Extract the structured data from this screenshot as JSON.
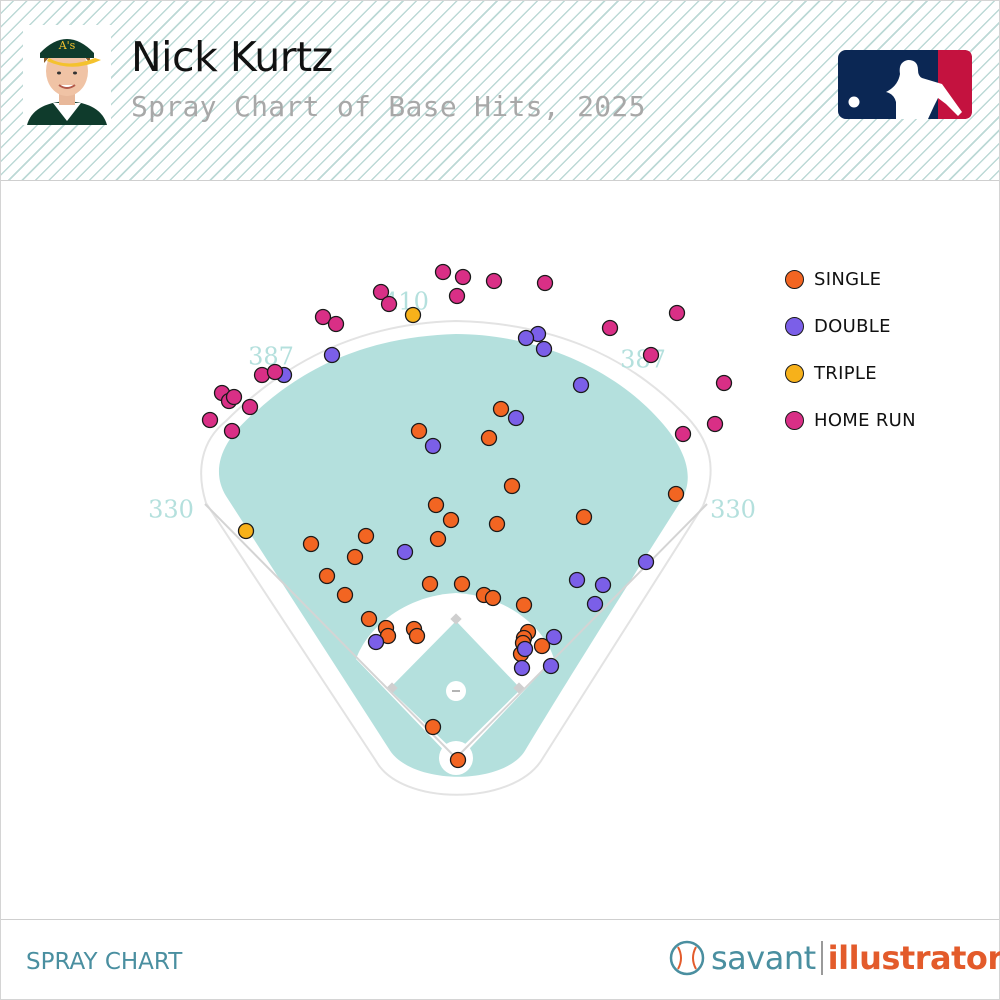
{
  "header": {
    "player_name": "Nick Kurtz",
    "subtitle": "Spray Chart of Base Hits, 2025"
  },
  "colors": {
    "single": "#f26522",
    "double": "#7b5fe8",
    "triple": "#f7b11a",
    "home_run": "#d92f86",
    "field": "#b4e0dd",
    "distance_label": "#b4e0dd",
    "mlb_blue": "#0b2754",
    "mlb_red": "#c4123f",
    "brand_teal": "#4a8fa0",
    "brand_orange": "#e35b2b"
  },
  "icons": {
    "logo": "mlb-logo",
    "avatar": "player-headshot",
    "brand": "baseball-icon"
  },
  "chart_data": {
    "type": "scatter",
    "title": "Spray Chart of Base Hits, 2025",
    "grid": false,
    "legend_placement": "right",
    "fence_distances": [
      {
        "label": "330",
        "side": "left-foul-line"
      },
      {
        "label": "387",
        "side": "left-center"
      },
      {
        "label": "410",
        "side": "center"
      },
      {
        "label": "387",
        "side": "right-center"
      },
      {
        "label": "330",
        "side": "right-foul-line"
      }
    ],
    "legend": [
      {
        "key": "single",
        "label": "SINGLE"
      },
      {
        "key": "double",
        "label": "DOUBLE"
      },
      {
        "key": "triple",
        "label": "TRIPLE"
      },
      {
        "key": "home_run",
        "label": "HOME RUN"
      }
    ],
    "series": [
      {
        "name": "SINGLE",
        "key": "single",
        "points": [
          [
            418,
            430
          ],
          [
            488,
            437
          ],
          [
            500,
            408
          ],
          [
            511,
            485
          ],
          [
            435,
            504
          ],
          [
            450,
            519
          ],
          [
            496,
            523
          ],
          [
            437,
            538
          ],
          [
            365,
            535
          ],
          [
            310,
            543
          ],
          [
            354,
            556
          ],
          [
            326,
            575
          ],
          [
            344,
            594
          ],
          [
            429,
            583
          ],
          [
            461,
            583
          ],
          [
            483,
            594
          ],
          [
            492,
            597
          ],
          [
            523,
            604
          ],
          [
            675,
            493
          ],
          [
            583,
            516
          ],
          [
            368,
            618
          ],
          [
            385,
            627
          ],
          [
            387,
            635
          ],
          [
            413,
            628
          ],
          [
            416,
            635
          ],
          [
            527,
            631
          ],
          [
            523,
            637
          ],
          [
            522,
            642
          ],
          [
            541,
            645
          ],
          [
            520,
            653
          ],
          [
            432,
            726
          ],
          [
            457,
            759
          ]
        ]
      },
      {
        "name": "DOUBLE",
        "key": "double",
        "points": [
          [
            331,
            354
          ],
          [
            283,
            374
          ],
          [
            537,
            333
          ],
          [
            525,
            337
          ],
          [
            543,
            348
          ],
          [
            580,
            384
          ],
          [
            515,
            417
          ],
          [
            432,
            445
          ],
          [
            404,
            551
          ],
          [
            645,
            561
          ],
          [
            576,
            579
          ],
          [
            602,
            584
          ],
          [
            594,
            603
          ],
          [
            375,
            641
          ],
          [
            553,
            636
          ],
          [
            524,
            648
          ],
          [
            521,
            667
          ],
          [
            550,
            665
          ]
        ]
      },
      {
        "name": "TRIPLE",
        "key": "triple",
        "points": [
          [
            412,
            314
          ],
          [
            245,
            530
          ]
        ]
      },
      {
        "name": "HOME RUN",
        "key": "home_run",
        "points": [
          [
            442,
            271
          ],
          [
            462,
            276
          ],
          [
            493,
            280
          ],
          [
            544,
            282
          ],
          [
            380,
            291
          ],
          [
            456,
            295
          ],
          [
            388,
            303
          ],
          [
            322,
            316
          ],
          [
            335,
            323
          ],
          [
            609,
            327
          ],
          [
            676,
            312
          ],
          [
            650,
            354
          ],
          [
            723,
            382
          ],
          [
            261,
            374
          ],
          [
            274,
            371
          ],
          [
            221,
            392
          ],
          [
            228,
            400
          ],
          [
            233,
            396
          ],
          [
            249,
            406
          ],
          [
            209,
            419
          ],
          [
            231,
            430
          ],
          [
            682,
            433
          ],
          [
            714,
            423
          ]
        ]
      }
    ]
  },
  "footer": {
    "section_label": "SPRAY CHART",
    "brand_part1": "savant",
    "brand_part2": "illustrator"
  }
}
